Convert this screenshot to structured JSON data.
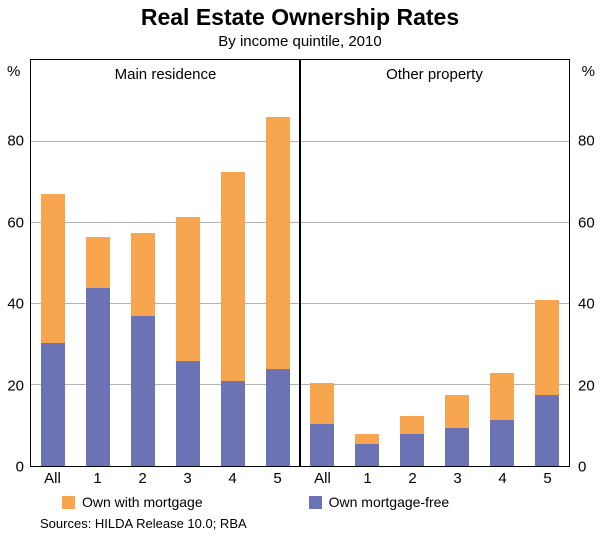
{
  "title": "Real Estate Ownership Rates",
  "subtitle": "By income quintile, 2010",
  "y_axis": {
    "unit": "%",
    "ticks": [
      0,
      20,
      40,
      60,
      80
    ],
    "max": 100
  },
  "legend": [
    {
      "label": "Own with mortgage",
      "color": "#F7A54E"
    },
    {
      "label": "Own mortgage-free",
      "color": "#6C73B4"
    }
  ],
  "footer": "Sources: HILDA Release 10.0; RBA",
  "chart_data": {
    "type": "bar",
    "stacked": true,
    "title": "Real Estate Ownership Rates",
    "subtitle": "By income quintile, 2010",
    "ylabel": "%",
    "ylim": [
      0,
      100
    ],
    "yticks": [
      0,
      20,
      40,
      60,
      80
    ],
    "grid": true,
    "legend_position": "bottom",
    "panels": [
      {
        "label": "Main residence",
        "categories": [
          "All",
          "1",
          "2",
          "3",
          "4",
          "5"
        ],
        "series": [
          {
            "name": "Own mortgage-free",
            "color": "#6C73B4",
            "values": [
              30.5,
              44,
              37,
              26,
              21,
              24
            ]
          },
          {
            "name": "Own with mortgage",
            "color": "#F7A54E",
            "values": [
              36.5,
              12.5,
              20.5,
              35.5,
              51.5,
              62
            ]
          }
        ],
        "totals": [
          67,
          56.5,
          57.5,
          61.5,
          72.5,
          86
        ]
      },
      {
        "label": "Other property",
        "categories": [
          "All",
          "1",
          "2",
          "3",
          "4",
          "5"
        ],
        "series": [
          {
            "name": "Own mortgage-free",
            "color": "#6C73B4",
            "values": [
              10.5,
              5.5,
              8,
              9.5,
              11.5,
              17.5
            ]
          },
          {
            "name": "Own with mortgage",
            "color": "#F7A54E",
            "values": [
              10,
              2.5,
              4.5,
              8,
              11.5,
              23.5
            ]
          }
        ],
        "totals": [
          20.5,
          8,
          12.5,
          17.5,
          23,
          41
        ]
      }
    ]
  }
}
